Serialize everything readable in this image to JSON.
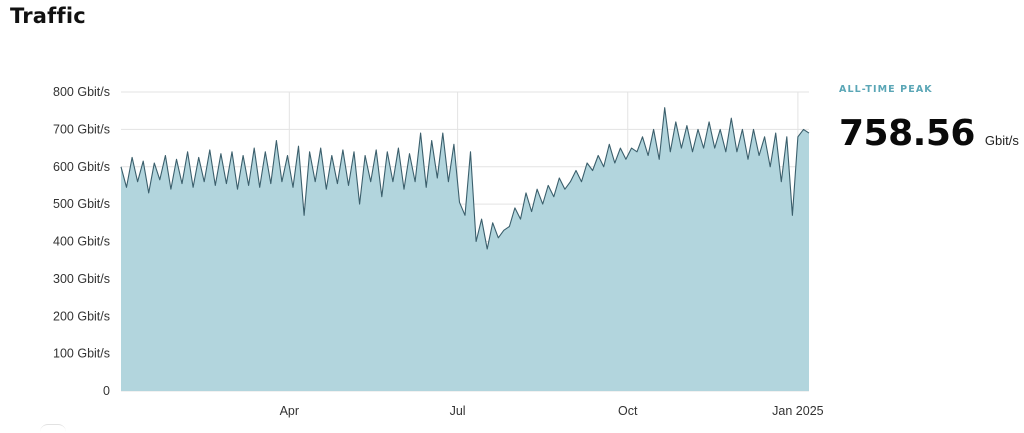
{
  "header": {
    "title": "Traffic"
  },
  "peak": {
    "label": "ALL-TIME PEAK",
    "value": "758.56",
    "unit": "Gbit/s"
  },
  "colors": {
    "area_fill": "#b2d5dd",
    "line": "#3b5f6c",
    "grid": "#e3e3e3",
    "accent": "#5aa6b6"
  },
  "chart_data": {
    "type": "area",
    "title": "Traffic",
    "xlabel": "",
    "ylabel": "",
    "ylim": [
      0,
      800
    ],
    "xlim": [
      "2024-01-01",
      "2025-01-07"
    ],
    "grid": true,
    "y_ticks": [
      {
        "value": 0,
        "label": "0"
      },
      {
        "value": 100,
        "label": "100 Gbit/s"
      },
      {
        "value": 200,
        "label": "200 Gbit/s"
      },
      {
        "value": 300,
        "label": "300 Gbit/s"
      },
      {
        "value": 400,
        "label": "400 Gbit/s"
      },
      {
        "value": 500,
        "label": "500 Gbit/s"
      },
      {
        "value": 600,
        "label": "600 Gbit/s"
      },
      {
        "value": 700,
        "label": "700 Gbit/s"
      },
      {
        "value": 800,
        "label": "800 Gbit/s"
      }
    ],
    "x_ticks": [
      {
        "value": "2024-04-01",
        "label": "Apr"
      },
      {
        "value": "2024-07-01",
        "label": "Jul"
      },
      {
        "value": "2024-10-01",
        "label": "Oct"
      },
      {
        "value": "2025-01-01",
        "label": "Jan 2025"
      }
    ],
    "series": [
      {
        "x": [
          "2024-01-01",
          "2024-01-04",
          "2024-01-07",
          "2024-01-10",
          "2024-01-13",
          "2024-01-16",
          "2024-01-19",
          "2024-01-22",
          "2024-01-25",
          "2024-01-28",
          "2024-01-31",
          "2024-02-03",
          "2024-02-06",
          "2024-02-09",
          "2024-02-12",
          "2024-02-15",
          "2024-02-18",
          "2024-02-21",
          "2024-02-24",
          "2024-02-27",
          "2024-03-01",
          "2024-03-04",
          "2024-03-07",
          "2024-03-10",
          "2024-03-13",
          "2024-03-16",
          "2024-03-19",
          "2024-03-22",
          "2024-03-25",
          "2024-03-28",
          "2024-03-31",
          "2024-04-03",
          "2024-04-06",
          "2024-04-09",
          "2024-04-12",
          "2024-04-15",
          "2024-04-18",
          "2024-04-21",
          "2024-04-24",
          "2024-04-27",
          "2024-04-30",
          "2024-05-03",
          "2024-05-06",
          "2024-05-09",
          "2024-05-12",
          "2024-05-15",
          "2024-05-18",
          "2024-05-21",
          "2024-05-24",
          "2024-05-27",
          "2024-05-30",
          "2024-06-02",
          "2024-06-05",
          "2024-06-08",
          "2024-06-11",
          "2024-06-14",
          "2024-06-17",
          "2024-06-20",
          "2024-06-23",
          "2024-06-26",
          "2024-06-29",
          "2024-07-02",
          "2024-07-05",
          "2024-07-08",
          "2024-07-11",
          "2024-07-14",
          "2024-07-17",
          "2024-07-20",
          "2024-07-23",
          "2024-07-26",
          "2024-07-29",
          "2024-08-01",
          "2024-08-04",
          "2024-08-07",
          "2024-08-10",
          "2024-08-13",
          "2024-08-16",
          "2024-08-19",
          "2024-08-22",
          "2024-08-25",
          "2024-08-28",
          "2024-08-31",
          "2024-09-03",
          "2024-09-06",
          "2024-09-09",
          "2024-09-12",
          "2024-09-15",
          "2024-09-18",
          "2024-09-21",
          "2024-09-24",
          "2024-09-27",
          "2024-09-30",
          "2024-10-03",
          "2024-10-06",
          "2024-10-09",
          "2024-10-12",
          "2024-10-15",
          "2024-10-18",
          "2024-10-21",
          "2024-10-24",
          "2024-10-27",
          "2024-10-30",
          "2024-11-02",
          "2024-11-05",
          "2024-11-08",
          "2024-11-11",
          "2024-11-14",
          "2024-11-17",
          "2024-11-20",
          "2024-11-23",
          "2024-11-26",
          "2024-11-29",
          "2024-12-02",
          "2024-12-05",
          "2024-12-08",
          "2024-12-11",
          "2024-12-14",
          "2024-12-17",
          "2024-12-20",
          "2024-12-23",
          "2024-12-26",
          "2024-12-29",
          "2025-01-01",
          "2025-01-04",
          "2025-01-07"
        ],
        "values": [
          600,
          545,
          625,
          560,
          615,
          530,
          610,
          565,
          630,
          540,
          620,
          555,
          640,
          545,
          625,
          560,
          645,
          550,
          635,
          555,
          640,
          540,
          630,
          550,
          650,
          545,
          640,
          555,
          670,
          560,
          630,
          545,
          655,
          470,
          640,
          560,
          650,
          540,
          630,
          555,
          645,
          550,
          640,
          500,
          630,
          560,
          645,
          520,
          640,
          560,
          650,
          540,
          635,
          560,
          690,
          545,
          670,
          570,
          690,
          560,
          660,
          505,
          470,
          640,
          400,
          460,
          380,
          450,
          410,
          430,
          440,
          490,
          460,
          530,
          480,
          540,
          500,
          550,
          520,
          570,
          540,
          560,
          590,
          560,
          610,
          590,
          630,
          600,
          660,
          610,
          650,
          620,
          650,
          640,
          680,
          630,
          700,
          620,
          758,
          640,
          720,
          650,
          710,
          640,
          700,
          650,
          720,
          650,
          700,
          640,
          730,
          640,
          700,
          620,
          700,
          630,
          680,
          600,
          690,
          560,
          680,
          470,
          680,
          700,
          690
        ],
        "line_color": "#3b5f6c",
        "fill_color": "#b2d5dd"
      }
    ]
  }
}
